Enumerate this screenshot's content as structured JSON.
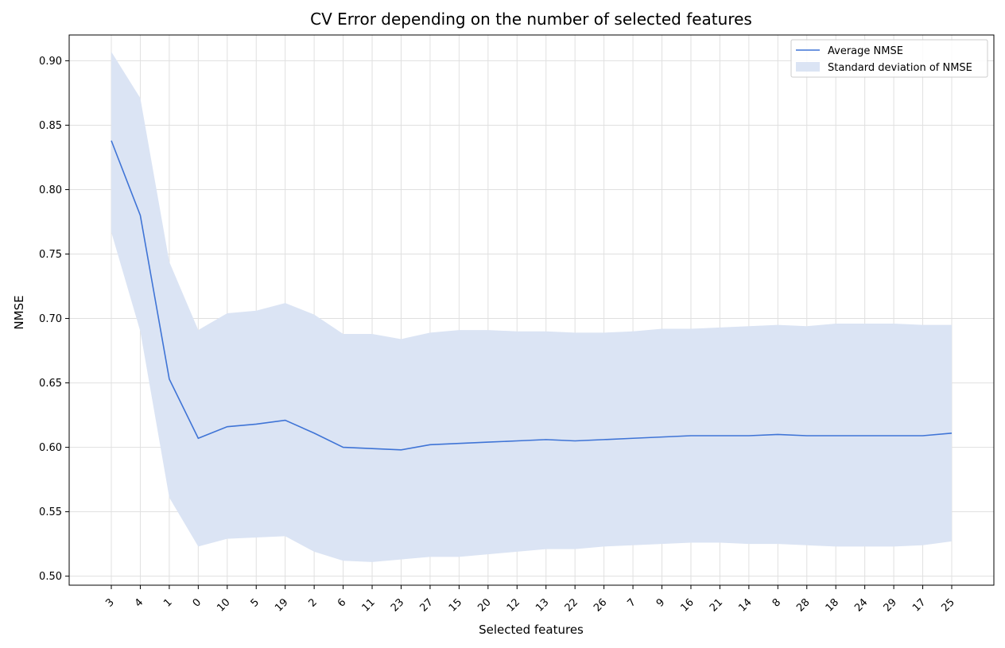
{
  "chart_data": {
    "type": "line",
    "title": "CV Error depending on the number of selected features",
    "xlabel": "Selected features",
    "ylabel": "NMSE",
    "categories": [
      "3",
      "4",
      "1",
      "0",
      "10",
      "5",
      "19",
      "2",
      "6",
      "11",
      "23",
      "27",
      "15",
      "20",
      "12",
      "13",
      "22",
      "26",
      "7",
      "9",
      "16",
      "21",
      "14",
      "8",
      "28",
      "18",
      "24",
      "29",
      "17",
      "25"
    ],
    "series": [
      {
        "name": "Average NMSE",
        "type": "line",
        "color": "#3f74d6",
        "values": [
          0.838,
          0.78,
          0.653,
          0.607,
          0.616,
          0.618,
          0.621,
          0.611,
          0.6,
          0.599,
          0.598,
          0.602,
          0.603,
          0.604,
          0.605,
          0.606,
          0.605,
          0.606,
          0.607,
          0.608,
          0.609,
          0.609,
          0.609,
          0.61,
          0.609,
          0.609,
          0.609,
          0.609,
          0.609,
          0.611
        ]
      },
      {
        "name": "Standard deviation of NMSE",
        "type": "band",
        "color": "#dbe4f4",
        "upper": [
          0.907,
          0.871,
          0.744,
          0.691,
          0.704,
          0.706,
          0.712,
          0.703,
          0.688,
          0.688,
          0.684,
          0.689,
          0.691,
          0.691,
          0.69,
          0.69,
          0.689,
          0.689,
          0.69,
          0.692,
          0.692,
          0.693,
          0.694,
          0.695,
          0.694,
          0.696,
          0.696,
          0.696,
          0.695,
          0.695
        ],
        "lower": [
          0.767,
          0.69,
          0.561,
          0.523,
          0.529,
          0.53,
          0.531,
          0.519,
          0.512,
          0.511,
          0.513,
          0.515,
          0.515,
          0.517,
          0.519,
          0.521,
          0.521,
          0.523,
          0.524,
          0.525,
          0.526,
          0.526,
          0.525,
          0.525,
          0.524,
          0.523,
          0.523,
          0.523,
          0.524,
          0.527
        ]
      }
    ],
    "ylim": [
      0.493,
      0.92
    ],
    "yticks": [
      0.5,
      0.55,
      0.6,
      0.65,
      0.7,
      0.75,
      0.8,
      0.85,
      0.9
    ],
    "ytick_labels": [
      "0.50",
      "0.55",
      "0.60",
      "0.65",
      "0.70",
      "0.75",
      "0.80",
      "0.85",
      "0.90"
    ],
    "grid": true,
    "legend": "top-right"
  }
}
